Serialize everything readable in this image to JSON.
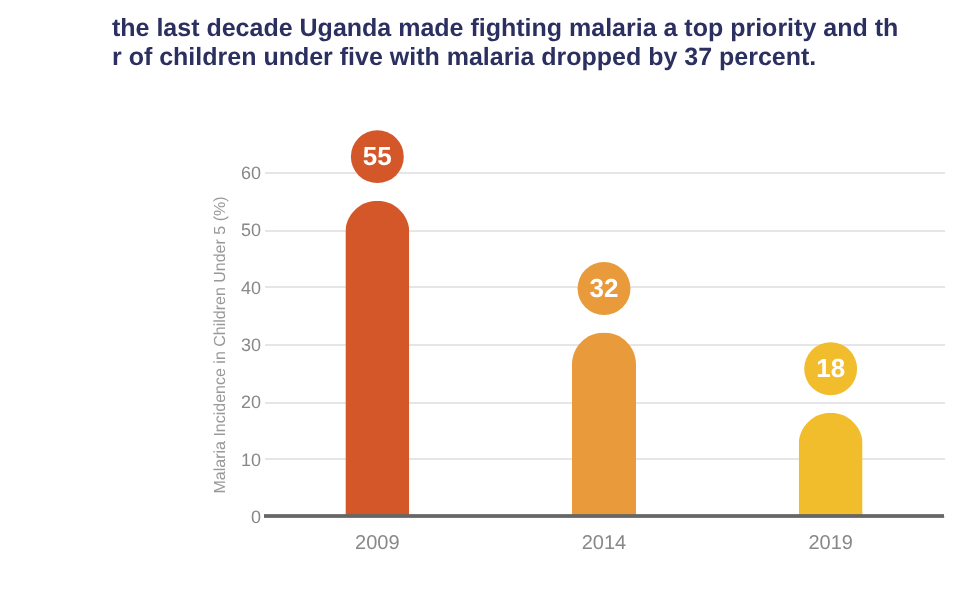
{
  "chart_data": {
    "type": "bar",
    "title": "the last decade Uganda made fighting malaria a top priority and th\nr of children under five with malaria dropped by 37 percent.",
    "ylabel": "Malaria Incidence in Children Under 5 (%)",
    "categories": [
      "2009",
      "2014",
      "2019"
    ],
    "values": [
      55,
      32,
      18
    ],
    "colors": [
      "#d4572a",
      "#e99a3b",
      "#f1bd2d"
    ],
    "ylim": [
      0,
      60
    ],
    "yticks": [
      0,
      10,
      20,
      30,
      40,
      50,
      60
    ],
    "grid": true,
    "data_labels": true
  }
}
